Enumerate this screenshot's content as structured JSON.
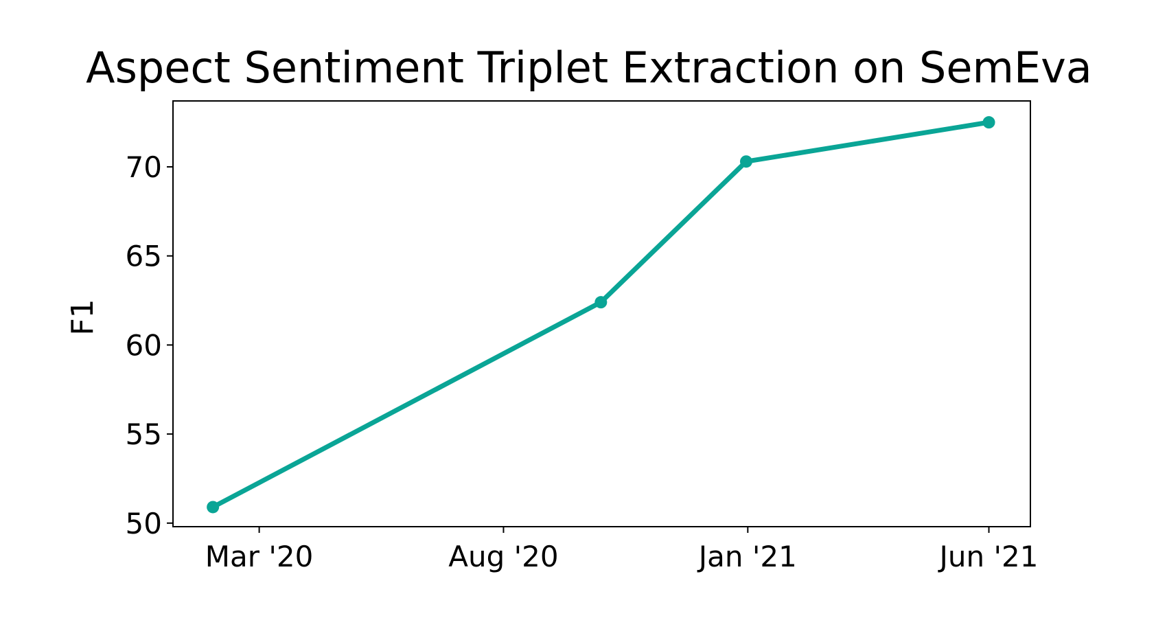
{
  "chart_data": {
    "type": "line",
    "title": "Aspect Sentiment Triplet Extraction on SemEva",
    "xlabel": "",
    "ylabel": "F1",
    "x": [
      "2020-02-01",
      "2020-10-01",
      "2020-12-31",
      "2021-06-01"
    ],
    "series": [
      {
        "values": [
          50.9,
          62.4,
          70.3,
          72.5
        ],
        "color": "#0aa596"
      }
    ],
    "xticks": [
      {
        "date": "2020-03-01",
        "label": "Mar '20"
      },
      {
        "date": "2020-08-01",
        "label": "Aug '20"
      },
      {
        "date": "2021-01-01",
        "label": "Jan '21"
      },
      {
        "date": "2021-06-01",
        "label": "Jun '21"
      }
    ],
    "yticks": [
      50,
      55,
      60,
      65,
      70
    ],
    "xlim": [
      "2020-01-07",
      "2021-06-27"
    ],
    "ylim": [
      49.8,
      73.7
    ],
    "grid": false,
    "legend": false
  }
}
